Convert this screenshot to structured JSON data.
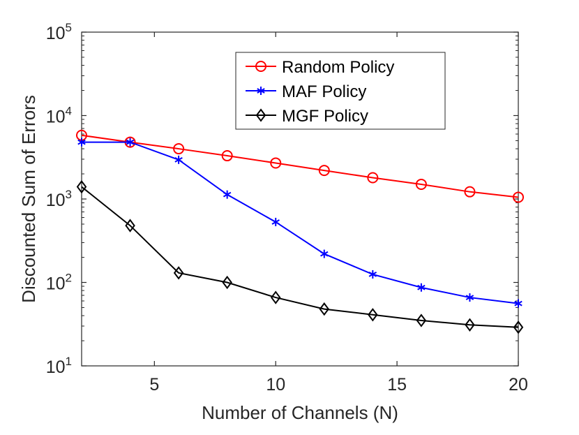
{
  "chart_data": {
    "type": "line",
    "yscale": "log",
    "xlabel": "Number of Channels (N)",
    "ylabel": "Discounted Sum of Errors",
    "xlim": [
      2,
      20
    ],
    "ylim": [
      10,
      100000
    ],
    "xticks": [
      5,
      10,
      15,
      20
    ],
    "yticks": [
      {
        "value": 10,
        "base": "10",
        "exp": "1"
      },
      {
        "value": 100,
        "base": "10",
        "exp": "2"
      },
      {
        "value": 1000,
        "base": "10",
        "exp": "3"
      },
      {
        "value": 10000,
        "base": "10",
        "exp": "4"
      },
      {
        "value": 100000,
        "base": "10",
        "exp": "5"
      }
    ],
    "legend_position": "top-right",
    "x": [
      2,
      4,
      6,
      8,
      10,
      12,
      14,
      16,
      18,
      20
    ],
    "series": [
      {
        "name": "Random Policy",
        "color": "#ff0000",
        "marker": "circle",
        "values": [
          5800,
          4800,
          4000,
          3300,
          2700,
          2200,
          1800,
          1500,
          1220,
          1050
        ]
      },
      {
        "name": "MAF Policy",
        "color": "#0000ff",
        "marker": "asterisk",
        "values": [
          4800,
          4800,
          2950,
          1130,
          530,
          220,
          125,
          87,
          66,
          56
        ]
      },
      {
        "name": "MGF Policy",
        "color": "#000000",
        "marker": "diamond",
        "values": [
          1400,
          480,
          130,
          100,
          66,
          48,
          41,
          35,
          31,
          29
        ]
      }
    ]
  }
}
